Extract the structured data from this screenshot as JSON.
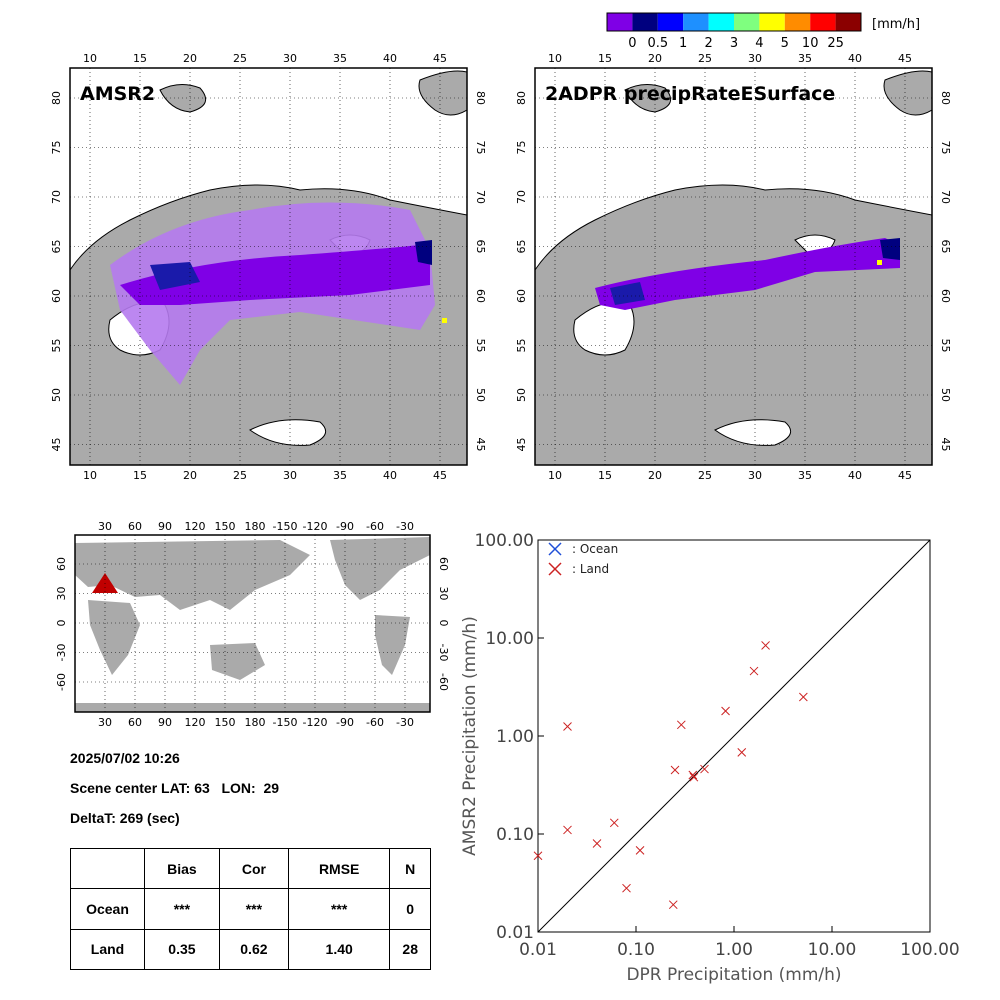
{
  "colorbar": {
    "unit": "[mm/h]",
    "colors": [
      "#7f00e6",
      "#00007f",
      "#0000ff",
      "#1e90ff",
      "#00ffff",
      "#7fff7f",
      "#ffff00",
      "#ff8c00",
      "#ff0000",
      "#8b0000"
    ],
    "labels": [
      "0",
      "0.5",
      "1",
      "2",
      "3",
      "4",
      "5",
      "10",
      "25"
    ]
  },
  "maps": {
    "lon_ticks": [
      "10",
      "15",
      "20",
      "25",
      "30",
      "35",
      "40",
      "45"
    ],
    "lat_ticks": [
      "80",
      "75",
      "70",
      "65",
      "60",
      "55",
      "50",
      "45"
    ],
    "left_title": "AMSR2",
    "right_title": "2ADPR precipRateESurface",
    "land_color": "#aaaaaa"
  },
  "world_map": {
    "lon_ticks": [
      "30",
      "60",
      "90",
      "120",
      "150",
      "180",
      "-150",
      "-120",
      "-90",
      "-60",
      "-30"
    ],
    "lat_ticks": [
      "60",
      "30",
      "0",
      "-30",
      "-60"
    ],
    "marker_color": "#c00000"
  },
  "info": {
    "datetime": "2025/07/02 10:26",
    "scene_center": "Scene center LAT: 63   LON:  29",
    "delta_t": "DeltaT:  269 (sec)"
  },
  "stats": {
    "headers": [
      "",
      "Bias",
      "Cor",
      "RMSE",
      "N"
    ],
    "rows": [
      {
        "label": "Ocean",
        "bias": "***",
        "cor": "***",
        "rmse": "***",
        "n": "0"
      },
      {
        "label": "Land",
        "bias": "0.35",
        "cor": "0.62",
        "rmse": "1.40",
        "n": "28"
      }
    ]
  },
  "chart_data": {
    "type": "scatter",
    "title": "",
    "xlabel": "DPR Precipitation (mm/h)",
    "ylabel": "AMSR2 Precipitation (mm/h)",
    "xscale": "log",
    "yscale": "log",
    "xlim": [
      0.01,
      100
    ],
    "ylim": [
      0.01,
      100
    ],
    "x_tick_labels": [
      "0.01",
      "0.10",
      "1.00",
      "10.00",
      "100.00"
    ],
    "y_tick_labels": [
      "0.01",
      "0.10",
      "1.00",
      "10.00",
      "100.00"
    ],
    "diagonal": true,
    "legend_position": "top-left",
    "series": [
      {
        "name": ": Ocean",
        "color": "#1f4fd8",
        "marker": "x",
        "points": []
      },
      {
        "name": ": Land",
        "color": "#cc2222",
        "marker": "x",
        "points": [
          [
            0.01,
            0.06
          ],
          [
            0.02,
            1.25
          ],
          [
            0.02,
            0.11
          ],
          [
            0.04,
            0.08
          ],
          [
            0.06,
            0.13
          ],
          [
            0.08,
            0.028
          ],
          [
            0.11,
            0.068
          ],
          [
            0.24,
            0.019
          ],
          [
            0.25,
            0.45
          ],
          [
            0.29,
            1.3
          ],
          [
            0.38,
            0.4
          ],
          [
            0.39,
            0.38
          ],
          [
            0.5,
            0.46
          ],
          [
            0.82,
            1.8
          ],
          [
            1.2,
            0.68
          ],
          [
            1.6,
            4.6
          ],
          [
            2.1,
            8.4
          ],
          [
            5.1,
            2.5
          ]
        ]
      }
    ]
  }
}
